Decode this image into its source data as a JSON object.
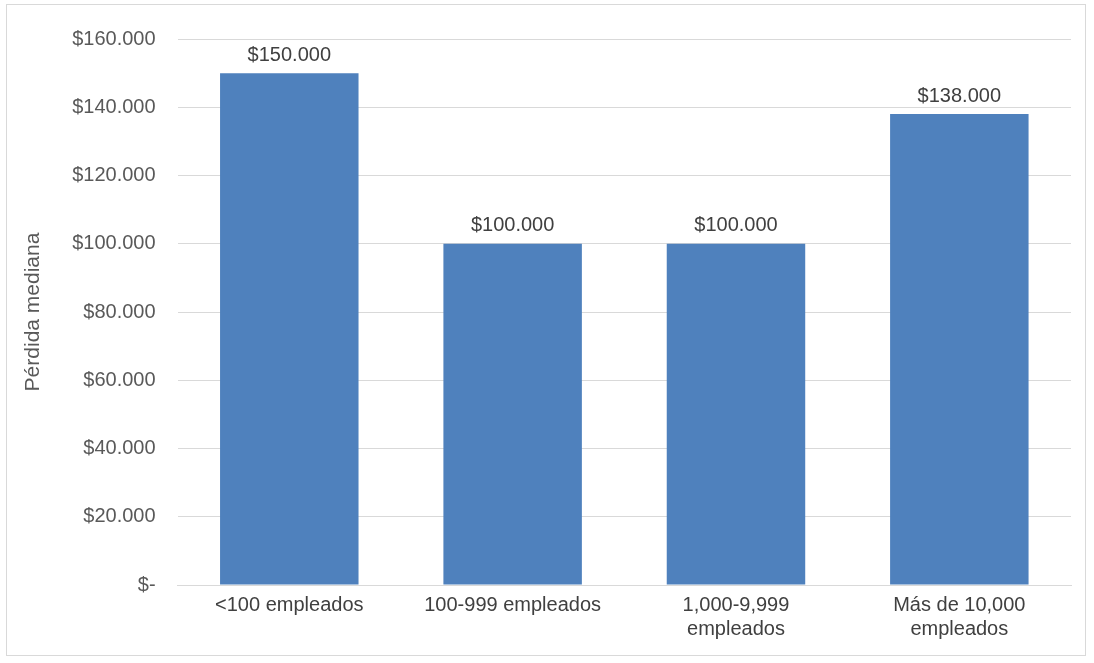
{
  "chart_data": {
    "type": "bar",
    "ylabel": "Pérdida mediana",
    "categories": [
      "<100 empleados",
      "100-999 empleados",
      "1,000-9,999 empleados",
      "Más de 10,000 empleados"
    ],
    "values": [
      150000,
      100000,
      100000,
      138000
    ],
    "value_labels": [
      "$150.000",
      "$100.000",
      "$100.000",
      "$138.000"
    ],
    "color": "#4f81bd",
    "ylim": [
      0,
      160000
    ],
    "yticks": [
      {
        "value": 0,
        "label": "$-"
      },
      {
        "value": 20000,
        "label": "$20.000"
      },
      {
        "value": 40000,
        "label": "$40.000"
      },
      {
        "value": 60000,
        "label": "$60.000"
      },
      {
        "value": 80000,
        "label": "$80.000"
      },
      {
        "value": 100000,
        "label": "$100.000"
      },
      {
        "value": 120000,
        "label": "$120.000"
      },
      {
        "value": 140000,
        "label": "$140.000"
      },
      {
        "value": 160000,
        "label": "$160.000"
      }
    ],
    "grid": "y",
    "legend": false
  }
}
